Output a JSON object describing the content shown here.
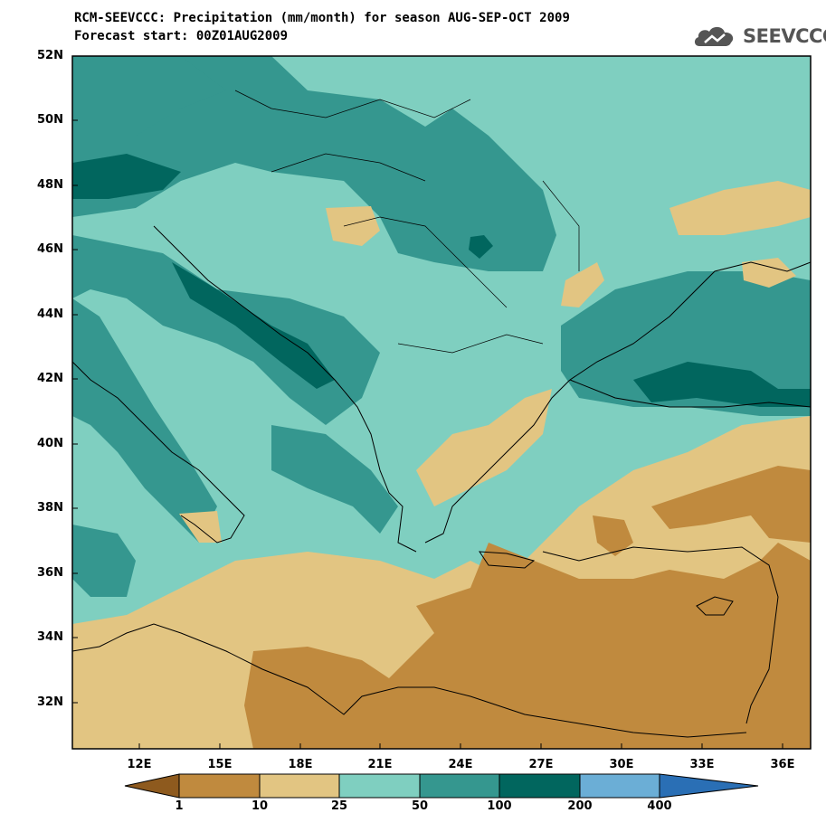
{
  "header": {
    "title_line1": "RCM-SEEVCCC: Precipitation (mm/month) for season AUG-SEP-OCT 2009",
    "title_line2": "Forecast start: 00Z01AUG2009",
    "logo_text": "SEEVCCC"
  },
  "map": {
    "lat_labels": [
      "52N",
      "50N",
      "48N",
      "46N",
      "44N",
      "42N",
      "40N",
      "38N",
      "36N",
      "34N",
      "32N"
    ],
    "lon_labels": [
      "12E",
      "15E",
      "18E",
      "21E",
      "24E",
      "27E",
      "30E",
      "33E",
      "36E"
    ],
    "lat_extent": [
      30.6,
      52
    ],
    "lon_extent": [
      9.6,
      37.2
    ]
  },
  "colorbar": {
    "labels": [
      "1",
      "10",
      "25",
      "50",
      "100",
      "200",
      "400"
    ],
    "colors": [
      "#8e5a1e",
      "#c08a3e",
      "#e2c582",
      "#7fcfc0",
      "#35978f",
      "#01665e",
      "#6baed6",
      "#2a6fb5"
    ]
  },
  "colors": {
    "lt1": "#8e5a1e",
    "c1_10": "#c08a3e",
    "c10_25": "#e2c582",
    "c25_50": "#7fcfc0",
    "c50_100": "#35978f",
    "c100_200": "#01665e"
  }
}
